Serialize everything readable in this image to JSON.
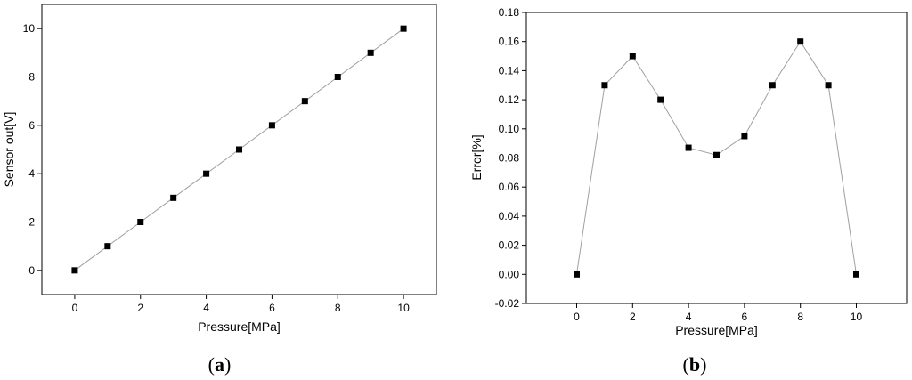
{
  "chart_data": [
    {
      "type": "line",
      "panel_label": "a",
      "xlabel": "Pressure[MPa]",
      "ylabel": "Sensor out[V]",
      "xlim": [
        -1,
        11
      ],
      "ylim": [
        -1,
        11
      ],
      "x_ticks": [
        0,
        2,
        4,
        6,
        8,
        10
      ],
      "y_ticks": [
        0,
        2,
        4,
        6,
        8,
        10
      ],
      "y_decimals": 0,
      "grid": false,
      "marker": "square",
      "line_color": "#a0a0a0",
      "marker_color": "#000000",
      "series": [
        {
          "x": [
            0,
            1,
            2,
            3,
            4,
            5,
            6,
            7,
            8,
            9,
            10
          ],
          "y": [
            0,
            1,
            2,
            3,
            4,
            5,
            6,
            7,
            8,
            9,
            10
          ]
        }
      ]
    },
    {
      "type": "line",
      "panel_label": "b",
      "xlabel": "Pressure[MPa]",
      "ylabel": "Error[%]",
      "xlim": [
        -1.8,
        11.8
      ],
      "ylim": [
        -0.02,
        0.18
      ],
      "x_ticks": [
        0,
        2,
        4,
        6,
        8,
        10
      ],
      "y_ticks": [
        -0.02,
        0.0,
        0.02,
        0.04,
        0.06,
        0.08,
        0.1,
        0.12,
        0.14,
        0.16,
        0.18
      ],
      "y_decimals": 2,
      "grid": false,
      "marker": "square",
      "line_color": "#a0a0a0",
      "marker_color": "#000000",
      "series": [
        {
          "x": [
            0,
            1,
            2,
            3,
            4,
            5,
            6,
            7,
            8,
            9,
            10
          ],
          "y": [
            0.0,
            0.13,
            0.15,
            0.12,
            0.087,
            0.082,
            0.095,
            0.13,
            0.16,
            0.13,
            0.0
          ]
        }
      ]
    }
  ]
}
